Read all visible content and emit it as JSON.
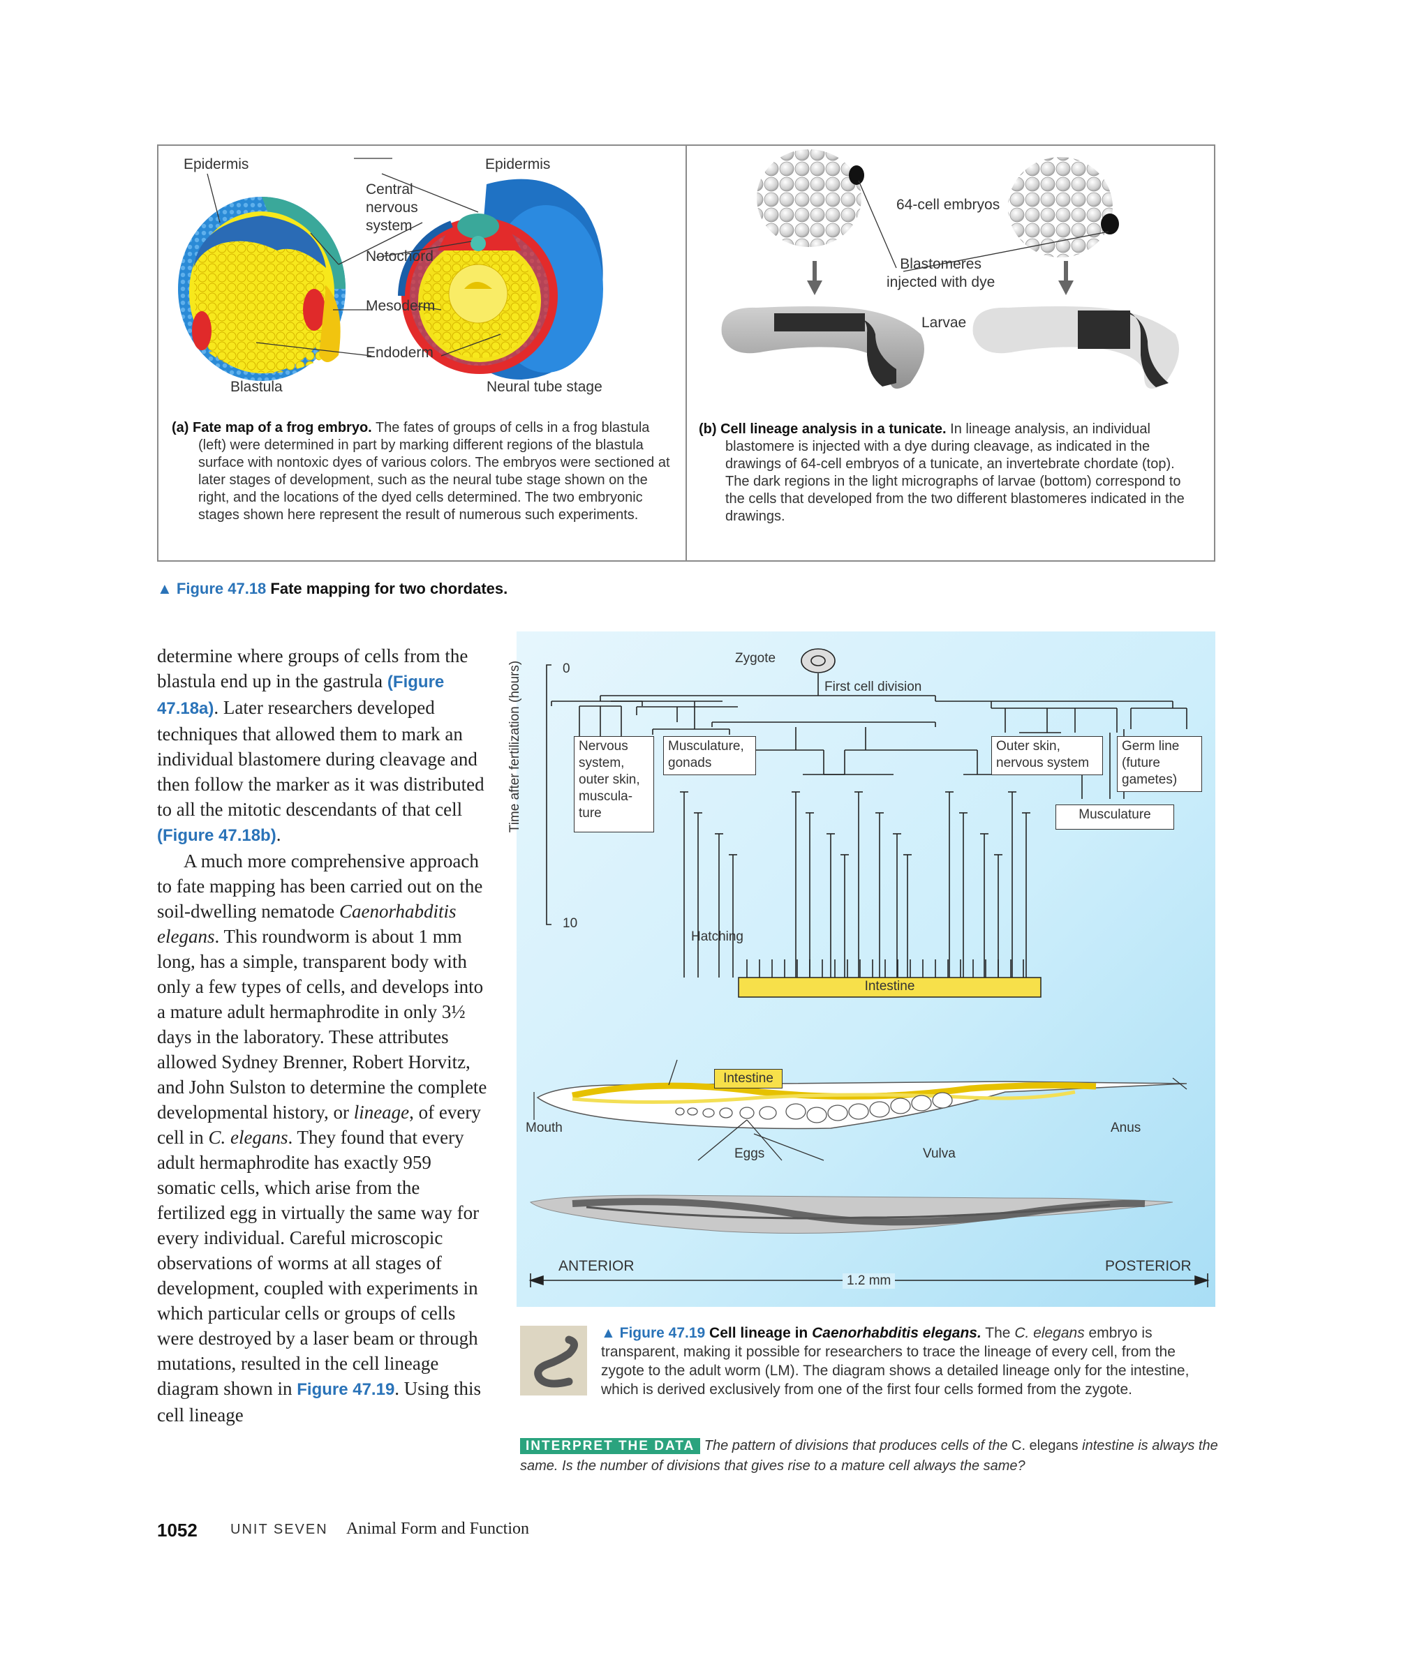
{
  "fig18": {
    "panel_a": {
      "labels": {
        "epidermis_left": "Epidermis",
        "epidermis_right": "Epidermis",
        "cns": "Central\nnervous\nsystem",
        "notochord": "Notochord",
        "mesoderm": "Mesoderm",
        "endoderm": "Endoderm",
        "blastula": "Blastula",
        "neural_tube": "Neural tube stage"
      },
      "caption_prefix": "(a)",
      "caption_title": "Fate map of a frog embryo.",
      "caption_body": "The fates of groups of cells in a frog blastula (left) were determined in part by marking different regions of the blastula surface with nontoxic dyes of various colors. The embryos were sectioned at later stages of development, such as the neural tube stage shown on the right, and the locations of the dyed cells determined. The two embryonic stages shown here represent the result of numerous such experiments."
    },
    "panel_b": {
      "labels": {
        "embryos": "64-cell embryos",
        "blastomeres": "Blastomeres\ninjected with dye",
        "larvae": "Larvae"
      },
      "caption_prefix": "(b)",
      "caption_title": "Cell lineage analysis in a tunicate.",
      "caption_body": "In lineage analysis, an individual blastomere is injected with a dye during cleavage, as indicated in the drawings of 64-cell embryos of a tunicate, an invertebrate chordate (top). The dark regions in the light micrographs of larvae (bottom) correspond to the cells that developed from the two different blastomeres indicated in the drawings."
    },
    "figure_caption": {
      "marker": "▲",
      "number": "Figure 47.18",
      "title": "Fate mapping for two chordates."
    }
  },
  "body_text": {
    "p1_a": "determine where groups of cells from the blastula end up in the gastrula ",
    "p1_ref1": "(Figure 47.18a)",
    "p1_b": ". Later researchers developed techniques that allowed them to mark an individual blastomere during cleavage and then follow the marker as it was distributed to all the mitotic descendants of that cell ",
    "p1_ref2": "(Figure 47.18b)",
    "p1_c": ".",
    "p2_a": "A much more comprehensive approach to fate mapping has been carried out on the soil-dwelling nematode ",
    "p2_species": "Caenorhabditis elegans",
    "p2_b": ". This roundworm is about 1 mm long, has a simple, transparent body with only a few types of cells, and develops into a mature adult hermaphrodite in only 3½ days in the laboratory. These attributes allowed Sydney Brenner, Robert Horvitz, and John Sulston to determine the complete developmental history, or ",
    "p2_lineage": "lineage",
    "p2_c": ", of every cell in ",
    "p2_species2": "C. elegans",
    "p2_d": ". They found that every adult hermaphrodite has exactly 959 somatic cells, which arise from the fertilized egg in virtually the same way for every individual. Careful microscopic observations of worms at all stages of development, coupled with experiments in which particular cells or groups of cells were destroyed by a laser beam or through mutations, resulted in the cell lineage diagram shown in ",
    "p2_ref": "Figure 47.19",
    "p2_e": ". Using this cell lineage"
  },
  "fig19": {
    "axis_label": "Time after fertilization (hours)",
    "tick_0": "0",
    "tick_10": "10",
    "zygote": "Zygote",
    "first_division": "First cell division",
    "box_nervous": "Nervous\nsystem,\nouter skin,\nmuscula-\nture",
    "box_muscle_gonads": "Musculature,\ngonads",
    "box_outer_skin": "Outer skin,\nnervous system",
    "box_germ": "Germ line\n(future\ngametes)",
    "box_musculature": "Musculature",
    "hatching": "Hatching",
    "intestine_bar": "Intestine",
    "intestine_tag": "Intestine",
    "mouth": "Mouth",
    "anus": "Anus",
    "eggs": "Eggs",
    "vulva": "Vulva",
    "anterior": "ANTERIOR",
    "posterior": "POSTERIOR",
    "scale": "1.2 mm",
    "caption": {
      "marker": "▲",
      "number": "Figure 47.19",
      "title_a": "Cell lineage in ",
      "title_species": "Caenorhabditis elegans.",
      "body_a": " The ",
      "body_species": "C. elegans",
      "body_b": " embryo is transparent, making it possible for researchers to trace the lineage of every cell, from the zygote to the adult worm (LM). The diagram shows a detailed lineage only for the intestine, which is derived exclusively from one of the first four cells formed from the zygote."
    },
    "interpret": {
      "tag": "INTERPRET THE DATA",
      "text_a": "The pattern of divisions that produces cells of the ",
      "text_species": "C. elegans",
      "text_b": " intestine is always the same. Is the number of divisions that gives rise to a mature cell always the same?"
    }
  },
  "footer": {
    "page_number": "1052",
    "unit": "UNIT SEVEN",
    "title": "Animal Form and Function"
  }
}
